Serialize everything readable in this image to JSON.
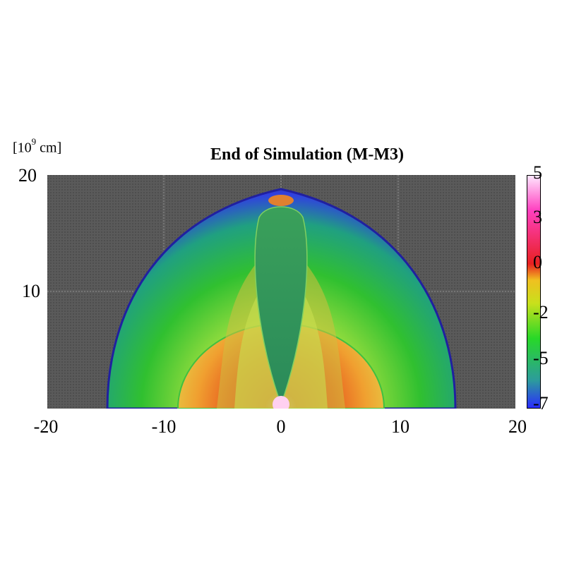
{
  "figure": {
    "title": "End of Simulation (M-M3)",
    "unit_label": "[10",
    "unit_exponent": "9",
    "unit_suffix": " cm]"
  },
  "axes": {
    "x_ticks": [
      "-20",
      "-10",
      "0",
      "10",
      "20"
    ],
    "y_ticks": [
      "20",
      "10"
    ],
    "x_range": [
      -20,
      20
    ],
    "y_range": [
      0,
      20
    ]
  },
  "colorbar": {
    "ticks": [
      "5",
      "3",
      "0",
      "-2",
      "-5",
      "-7"
    ],
    "range": [
      -7,
      5
    ],
    "colors": [
      "#2a2aff",
      "#2c9c9c",
      "#28d828",
      "#c8e01c",
      "#f0c020",
      "#e82020",
      "#ff40c0",
      "#ffe8ff"
    ]
  }
}
